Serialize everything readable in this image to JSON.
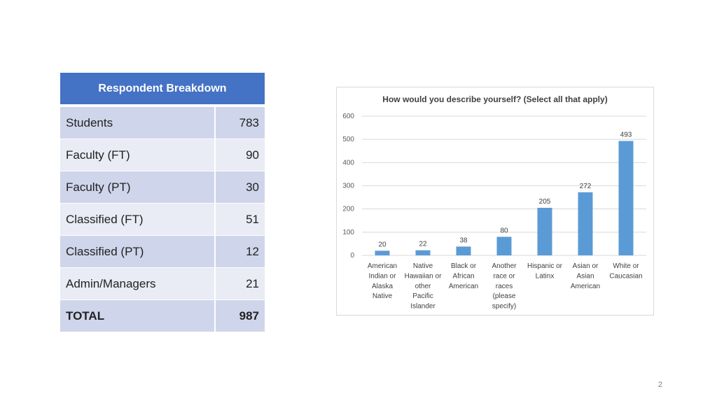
{
  "table": {
    "title": "Respondent Breakdown",
    "rows": [
      {
        "label": "Students",
        "value": "783"
      },
      {
        "label": "Faculty (FT)",
        "value": "90"
      },
      {
        "label": "Faculty (PT)",
        "value": "30"
      },
      {
        "label": "Classified (FT)",
        "value": "51"
      },
      {
        "label": "Classified (PT)",
        "value": "12"
      },
      {
        "label": "Admin/Managers",
        "value": "21"
      },
      {
        "label": "TOTAL",
        "value": "987"
      }
    ]
  },
  "chart_data": {
    "type": "bar",
    "title": "How would you describe yourself? (Select all that apply)",
    "categories": [
      [
        "American",
        "Indian or",
        "Alaska",
        "Native"
      ],
      [
        "Native",
        "Hawaiian or",
        "other",
        "Pacific",
        "Islander"
      ],
      [
        "Black or",
        "African",
        "American"
      ],
      [
        "Another",
        "race or",
        "races",
        "(please",
        "specify)"
      ],
      [
        "Hispanic or",
        "Latinx"
      ],
      [
        "Asian or",
        "Asian",
        "American"
      ],
      [
        "White or",
        "Caucasian"
      ]
    ],
    "values": [
      20,
      22,
      38,
      80,
      205,
      272,
      493
    ],
    "yticks": [
      0,
      100,
      200,
      300,
      400,
      500,
      600
    ],
    "ylim": [
      0,
      600
    ],
    "bar_color": "#5b9bd5",
    "grid_color": "#d9d9d9",
    "grid": true
  },
  "page_number": "2"
}
